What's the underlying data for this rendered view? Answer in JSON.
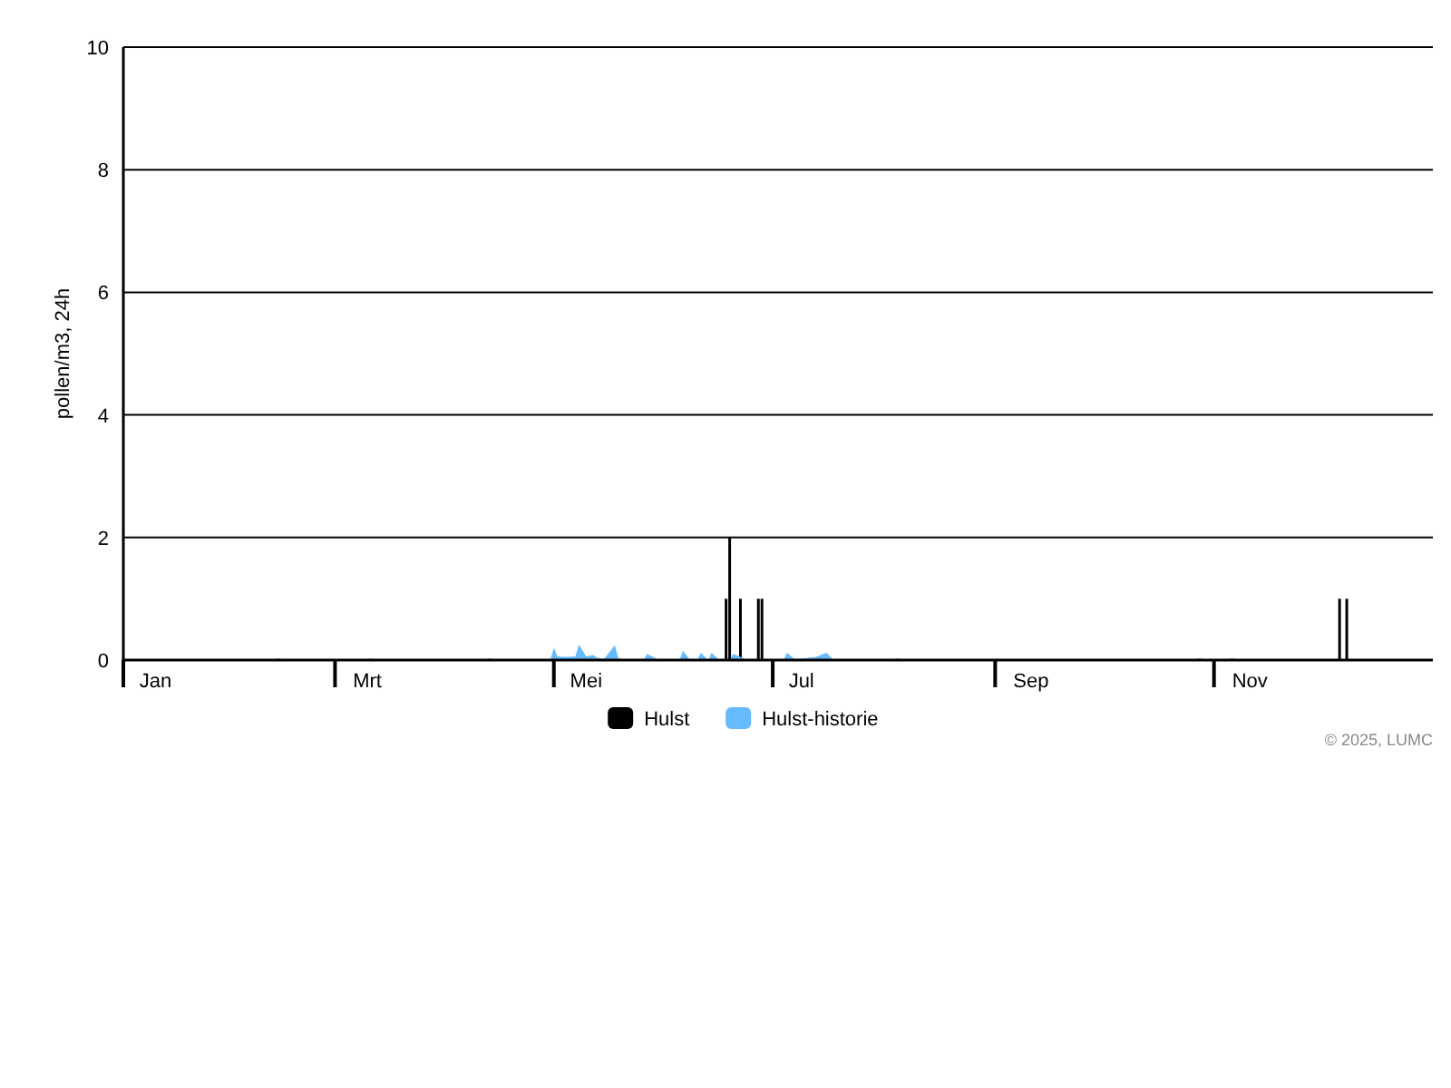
{
  "chart_data": {
    "type": "bar",
    "ylabel": "pollen/m3, 24h",
    "xlim": [
      "2025-01-01",
      "2026-01-01"
    ],
    "xticks": [
      {
        "value": "2025-01-01",
        "label": null
      },
      {
        "value": "2025-01-10",
        "label": "Jan"
      },
      {
        "value": "2025-03-01",
        "label": null
      },
      {
        "value": "2025-03-10",
        "label": "Mrt"
      },
      {
        "value": "2025-05-01",
        "label": null
      },
      {
        "value": "2025-05-10",
        "label": "Mei"
      },
      {
        "value": "2025-07-01",
        "label": null
      },
      {
        "value": "2025-07-09",
        "label": "Jul"
      },
      {
        "value": "2025-09-01",
        "label": null
      },
      {
        "value": "2025-09-11",
        "label": "Sep"
      },
      {
        "value": "2025-11-01",
        "label": null
      },
      {
        "value": "2025-11-11",
        "label": "Nov"
      }
    ],
    "ylim": [
      0,
      10
    ],
    "yticks": [
      0,
      2,
      4,
      6,
      8,
      10
    ],
    "grid": "y",
    "legend": "bottom",
    "series": [
      {
        "name": "Hulst",
        "color": "#000000",
        "x": [
          "2025-06-18",
          "2025-06-19",
          "2025-06-22",
          "2025-06-27",
          "2025-06-28",
          "2025-12-06",
          "2025-12-08"
        ],
        "values": [
          1,
          2,
          1,
          1,
          1,
          1,
          1
        ]
      },
      {
        "name": "Hulst-historie",
        "type": "area",
        "color": "#66bbff",
        "x": [
          "2025-02-11",
          "2025-02-13",
          "2025-02-15",
          "2025-03-09",
          "2025-03-11",
          "2025-03-13",
          "2025-04-11",
          "2025-04-13",
          "2025-04-15",
          "2025-04-30",
          "2025-05-01",
          "2025-05-02",
          "2025-05-04",
          "2025-05-07",
          "2025-05-08",
          "2025-05-10",
          "2025-05-12",
          "2025-05-13",
          "2025-05-15",
          "2025-05-18",
          "2025-05-19",
          "2025-05-21",
          "2025-05-26",
          "2025-05-27",
          "2025-05-29",
          "2025-05-30",
          "2025-06-05",
          "2025-06-06",
          "2025-06-08",
          "2025-06-10",
          "2025-06-11",
          "2025-06-13",
          "2025-06-14",
          "2025-06-16",
          "2025-06-19",
          "2025-06-20",
          "2025-06-22",
          "2025-06-24",
          "2025-07-04",
          "2025-07-05",
          "2025-07-07",
          "2025-07-10",
          "2025-07-13",
          "2025-07-16",
          "2025-07-18",
          "2025-08-03",
          "2025-08-05",
          "2025-08-06",
          "2025-10-26",
          "2025-10-28",
          "2025-10-30",
          "2025-11-04",
          "2025-11-06",
          "2025-11-08"
        ],
        "values": [
          0,
          0.03,
          0,
          0,
          0.03,
          0,
          0,
          0.03,
          0,
          0,
          0.2,
          0.06,
          0.05,
          0.06,
          0.25,
          0.06,
          0.08,
          0.04,
          0.02,
          0.24,
          0.03,
          0,
          0,
          0.1,
          0.04,
          0,
          0,
          0.15,
          0,
          0,
          0.12,
          0,
          0.12,
          0,
          0,
          0.1,
          0.05,
          0,
          0,
          0.12,
          0.02,
          0.03,
          0.05,
          0.12,
          0,
          0,
          0.03,
          0,
          0,
          0.03,
          0,
          0,
          0.03,
          0
        ]
      }
    ],
    "annotations": [
      "© 2025, LUMC"
    ]
  }
}
